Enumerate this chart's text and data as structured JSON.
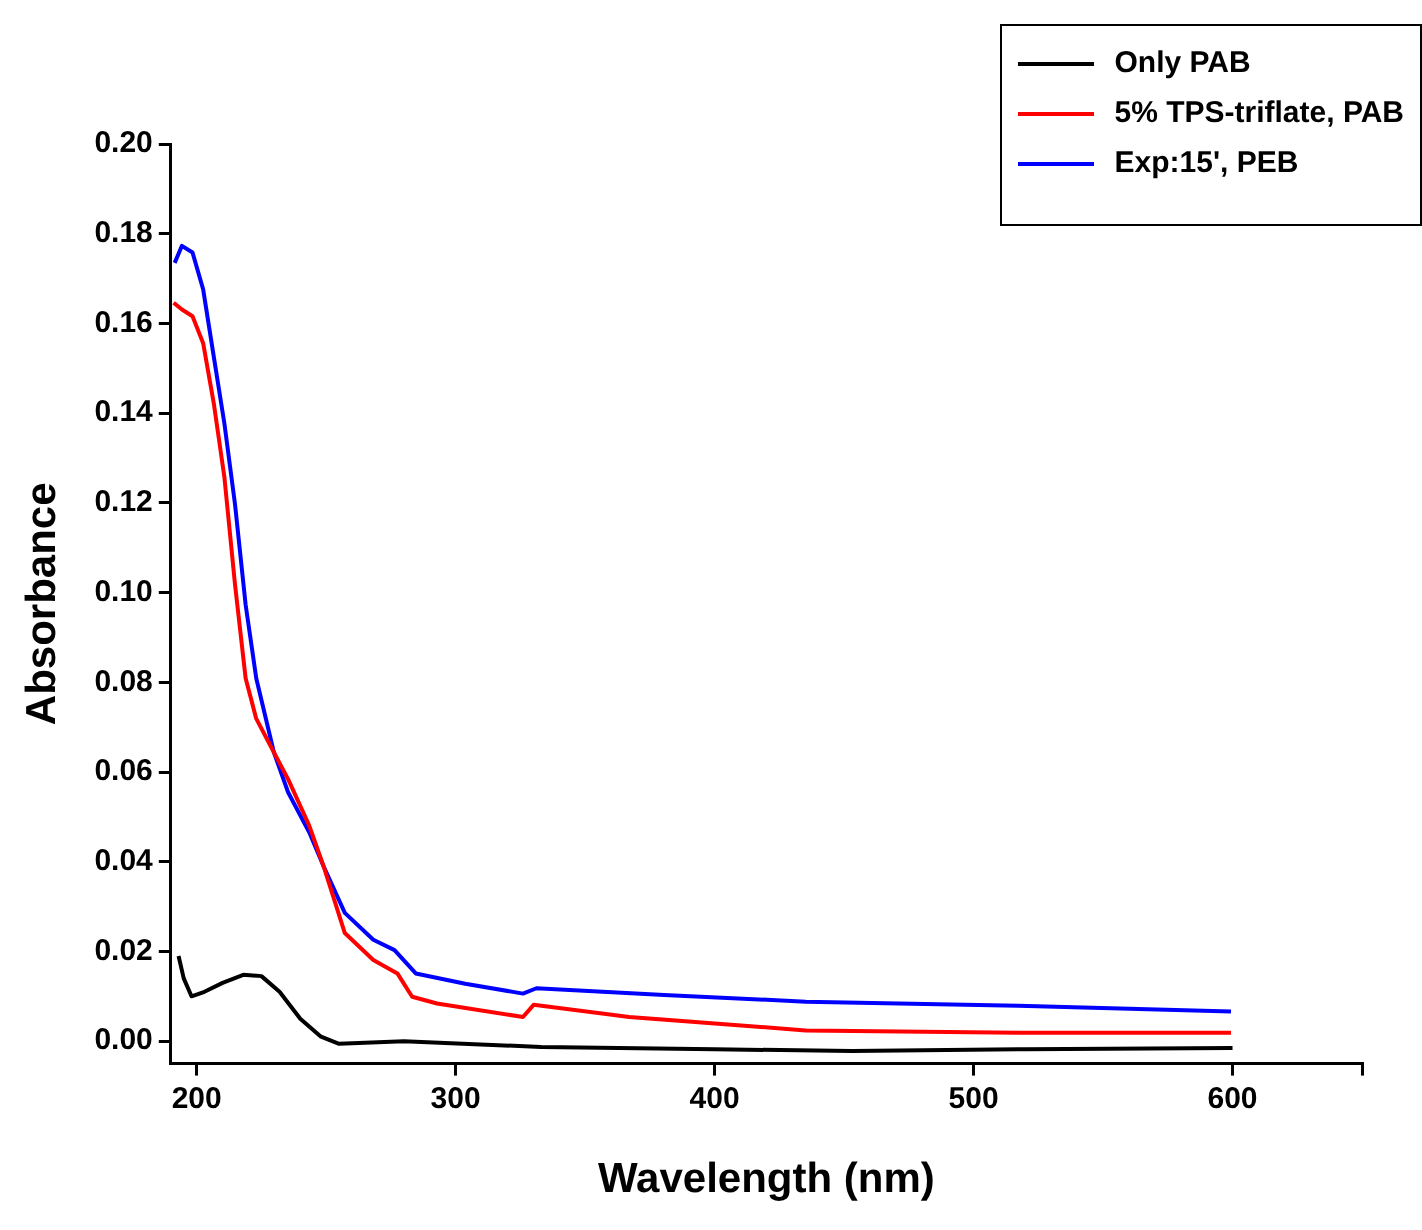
{
  "chart_data": {
    "type": "line",
    "xlabel": "Wavelength (nm)",
    "ylabel": "Absorbance",
    "xlim": [
      190,
      650
    ],
    "xticks": [
      200,
      300,
      400,
      500,
      600,
      {
        "value": 650,
        "label": null
      }
    ],
    "ylim": [
      -0.005,
      0.2
    ],
    "yticks": [
      {
        "value": 0,
        "label": "0.00"
      },
      {
        "value": 0.02,
        "label": "0.02"
      },
      {
        "value": 0.04,
        "label": "0.04"
      },
      {
        "value": 0.06,
        "label": "0.06"
      },
      {
        "value": 0.08,
        "label": "0.08"
      },
      {
        "value": 0.1,
        "label": "0.10"
      },
      {
        "value": 0.12,
        "label": "0.12"
      },
      {
        "value": 0.14,
        "label": "0.14"
      },
      {
        "value": 0.16,
        "label": "0.16"
      },
      {
        "value": 0.18,
        "label": "0.18"
      },
      {
        "value": 0.2,
        "label": "0.20"
      }
    ],
    "grid": false,
    "legend": "top right",
    "marker": "none",
    "line_style": "solid",
    "series": [
      {
        "name": "Only PAB",
        "color": "#000000",
        "x": [
          193,
          195,
          198,
          203,
          210,
          218,
          225,
          232,
          240,
          248,
          255,
          280,
          333,
          400,
          453,
          520,
          600
        ],
        "values": [
          0.019,
          0.014,
          0.01,
          0.011,
          0.013,
          0.0148,
          0.0145,
          0.011,
          0.005,
          0.001,
          -0.0006,
          0.0,
          -0.0013,
          -0.0018,
          -0.0022,
          -0.0018,
          -0.0015
        ]
      },
      {
        "name": "5% TPS-triflate, PAB",
        "color": "#ff0000",
        "x": [
          191.1,
          194.3,
          198.4,
          202.5,
          206.6,
          210.7,
          214.8,
          218.9,
          223,
          229.8,
          235.3,
          243.5,
          249,
          257.2,
          268.2,
          277.5,
          283.2,
          292.8,
          326,
          330.1,
          367,
          435.2,
          517.3,
          599.4
        ],
        "values": [
          0.1646,
          0.1631,
          0.1616,
          0.1556,
          0.1422,
          0.1257,
          0.1018,
          0.0809,
          0.0719,
          0.0644,
          0.0584,
          0.048,
          0.039,
          0.0241,
          0.0181,
          0.0151,
          0.0099,
          0.0084,
          0.0054,
          0.0081,
          0.0054,
          0.0024,
          0.0019,
          0.0019
        ]
      },
      {
        "name": "Exp:15', PEB",
        "color": "#0000ff",
        "x": [
          191.5,
          194.3,
          198.4,
          202.5,
          206.6,
          210.7,
          214.8,
          218.9,
          223,
          229.8,
          235.3,
          243.5,
          249,
          257.2,
          268.2,
          276.4,
          284.6,
          303.7,
          326,
          331.2,
          380.5,
          435.2,
          517.3,
          599.4
        ],
        "values": [
          0.1735,
          0.1773,
          0.1758,
          0.1676,
          0.1526,
          0.1377,
          0.1197,
          0.0973,
          0.0809,
          0.0644,
          0.0555,
          0.0465,
          0.039,
          0.0286,
          0.0226,
          0.0203,
          0.0151,
          0.0128,
          0.0106,
          0.0118,
          0.0103,
          0.0088,
          0.0079,
          0.0066
        ]
      }
    ]
  }
}
